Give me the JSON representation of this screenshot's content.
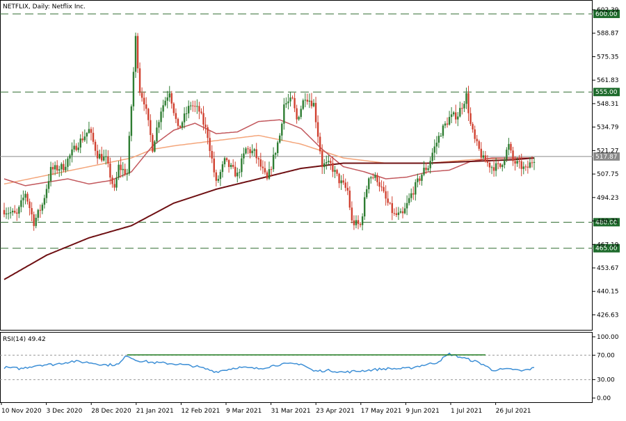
{
  "chart_data": {
    "type": "candlestick",
    "title": "NETFLIX, Daily:  Netflix Inc.",
    "symbol": "NETFLIX",
    "timeframe": "Daily",
    "instrument": "Netflix Inc.",
    "current_price": 517.87,
    "price_ylim": [
      418.0,
      608.0
    ],
    "price_ticks": [
      "602.39",
      "588.87",
      "575.35",
      "561.83",
      "548.31",
      "534.79",
      "521.27",
      "507.75",
      "494.23",
      "480.71",
      "467.19",
      "453.67",
      "440.15",
      "426.63"
    ],
    "levels": [
      {
        "value": 600.0,
        "label": "600.00"
      },
      {
        "value": 555.0,
        "label": "555.00"
      },
      {
        "value": 480.0,
        "label": "480.00"
      },
      {
        "value": 465.0,
        "label": "465.00"
      }
    ],
    "x_labels": [
      "10 Nov 2020",
      "3 Dec 2020",
      "28 Dec 2020",
      "21 Jan 2021",
      "12 Feb 2021",
      "9 Mar 2021",
      "31 Mar 2021",
      "23 Apr 2021",
      "17 May 2021",
      "9 Jun 2021",
      "1 Jul 2021",
      "26 Jul 2021"
    ],
    "close_anchors": [
      [
        0,
        487
      ],
      [
        6,
        484
      ],
      [
        10,
        497
      ],
      [
        14,
        480
      ],
      [
        18,
        490
      ],
      [
        22,
        510
      ],
      [
        28,
        512
      ],
      [
        34,
        524
      ],
      [
        40,
        533
      ],
      [
        44,
        519
      ],
      [
        48,
        516
      ],
      [
        52,
        498
      ],
      [
        54,
        512
      ],
      [
        58,
        508
      ],
      [
        62,
        586
      ],
      [
        64,
        556
      ],
      [
        66,
        550
      ],
      [
        70,
        523
      ],
      [
        74,
        545
      ],
      [
        78,
        556
      ],
      [
        82,
        533
      ],
      [
        88,
        548
      ],
      [
        92,
        544
      ],
      [
        96,
        530
      ],
      [
        100,
        502
      ],
      [
        104,
        515
      ],
      [
        110,
        507
      ],
      [
        114,
        522
      ],
      [
        118,
        520
      ],
      [
        124,
        504
      ],
      [
        130,
        530
      ],
      [
        132,
        548
      ],
      [
        136,
        550
      ],
      [
        138,
        539
      ],
      [
        142,
        553
      ],
      [
        146,
        548
      ],
      [
        150,
        513
      ],
      [
        154,
        513
      ],
      [
        158,
        504
      ],
      [
        162,
        498
      ],
      [
        164,
        480
      ],
      [
        168,
        478
      ],
      [
        172,
        507
      ],
      [
        176,
        505
      ],
      [
        180,
        493
      ],
      [
        184,
        484
      ],
      [
        188,
        484
      ],
      [
        192,
        496
      ],
      [
        198,
        510
      ],
      [
        200,
        512
      ],
      [
        202,
        520
      ],
      [
        206,
        532
      ],
      [
        210,
        540
      ],
      [
        214,
        542
      ],
      [
        218,
        553
      ],
      [
        220,
        536
      ],
      [
        222,
        527
      ],
      [
        226,
        516
      ],
      [
        230,
        512
      ],
      [
        234,
        512
      ],
      [
        238,
        524
      ],
      [
        240,
        515
      ],
      [
        244,
        512
      ],
      [
        246,
        510
      ],
      [
        250,
        517
      ]
    ],
    "ma_slow": [
      [
        0,
        447
      ],
      [
        20,
        461
      ],
      [
        40,
        471
      ],
      [
        60,
        478
      ],
      [
        80,
        491
      ],
      [
        100,
        499
      ],
      [
        120,
        505
      ],
      [
        140,
        511
      ],
      [
        160,
        514
      ],
      [
        180,
        514
      ],
      [
        200,
        514
      ],
      [
        220,
        515
      ],
      [
        240,
        516
      ],
      [
        250,
        517
      ]
    ],
    "ma_mid": [
      [
        0,
        502
      ],
      [
        20,
        507
      ],
      [
        40,
        512
      ],
      [
        60,
        517
      ],
      [
        70,
        522
      ],
      [
        80,
        524
      ],
      [
        100,
        527
      ],
      [
        120,
        530
      ],
      [
        140,
        525
      ],
      [
        160,
        517
      ],
      [
        180,
        514
      ],
      [
        200,
        514
      ],
      [
        220,
        516
      ],
      [
        240,
        517
      ],
      [
        250,
        517
      ]
    ],
    "ma_fast": [
      [
        0,
        505
      ],
      [
        10,
        501
      ],
      [
        20,
        503
      ],
      [
        30,
        505
      ],
      [
        40,
        502
      ],
      [
        50,
        504
      ],
      [
        60,
        509
      ],
      [
        70,
        524
      ],
      [
        80,
        533
      ],
      [
        90,
        537
      ],
      [
        100,
        531
      ],
      [
        110,
        532
      ],
      [
        120,
        538
      ],
      [
        130,
        539
      ],
      [
        140,
        534
      ],
      [
        150,
        522
      ],
      [
        160,
        512
      ],
      [
        170,
        509
      ],
      [
        180,
        505
      ],
      [
        190,
        506
      ],
      [
        200,
        509
      ],
      [
        210,
        510
      ],
      [
        220,
        515
      ],
      [
        230,
        517
      ],
      [
        240,
        517
      ],
      [
        250,
        517
      ]
    ],
    "rsi": {
      "label": "RSI(14) 49.42",
      "period": 14,
      "value": 49.42,
      "ylim": [
        0,
        100
      ],
      "ticks": [
        "100.00",
        "70.00",
        "30.00",
        "0.00"
      ],
      "levels": [
        70,
        30
      ],
      "anchors": [
        [
          0,
          50
        ],
        [
          8,
          48
        ],
        [
          16,
          54
        ],
        [
          24,
          55
        ],
        [
          32,
          60
        ],
        [
          40,
          58
        ],
        [
          48,
          54
        ],
        [
          54,
          55
        ],
        [
          58,
          70
        ],
        [
          62,
          62
        ],
        [
          70,
          58
        ],
        [
          80,
          56
        ],
        [
          90,
          52
        ],
        [
          100,
          43
        ],
        [
          110,
          50
        ],
        [
          120,
          48
        ],
        [
          130,
          55
        ],
        [
          140,
          56
        ],
        [
          146,
          44
        ],
        [
          154,
          45
        ],
        [
          160,
          42
        ],
        [
          170,
          45
        ],
        [
          180,
          48
        ],
        [
          190,
          48
        ],
        [
          198,
          54
        ],
        [
          204,
          58
        ],
        [
          210,
          72
        ],
        [
          216,
          66
        ],
        [
          222,
          60
        ],
        [
          226,
          55
        ],
        [
          230,
          46
        ],
        [
          240,
          47
        ],
        [
          244,
          44
        ],
        [
          250,
          49
        ]
      ]
    },
    "trendlines": [
      {
        "from_index": 58,
        "to_index": 144,
        "value": 70.5
      },
      {
        "from_index": 144,
        "to_index": 227,
        "value": 70.5
      }
    ]
  }
}
